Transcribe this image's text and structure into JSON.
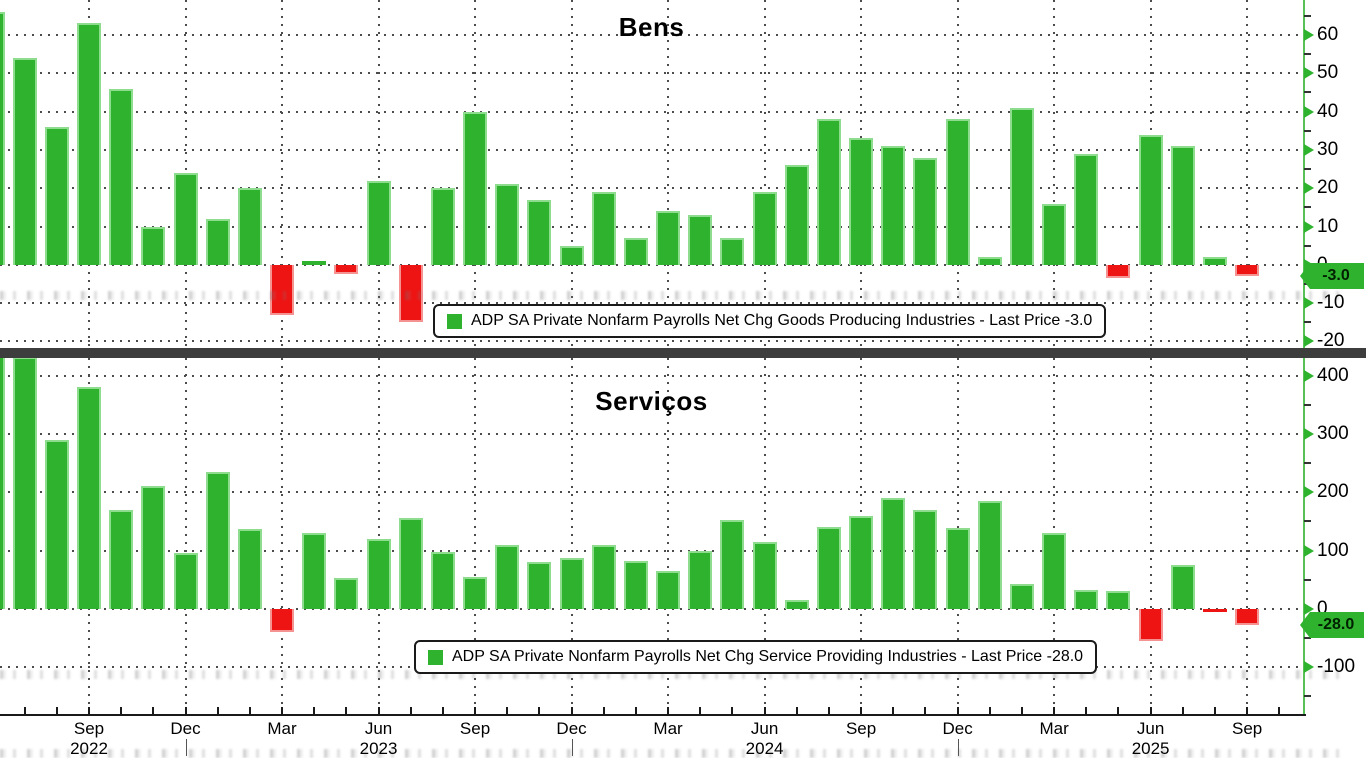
{
  "colors": {
    "bar_green": "#2fb32f",
    "bar_green_edge": "#8edc8e",
    "bar_red": "#ee1414",
    "bar_red_edge": "#f59292",
    "axis_line_green": "#57c057",
    "x_axis_black": "#1a1a1a",
    "grid_gray": "#4c4c4c",
    "divider_gray": "#3d3d3d",
    "badge_text": "#002000",
    "background": "#ffffff"
  },
  "x_axis": {
    "months": [
      "2022-06",
      "2022-07",
      "2022-08",
      "2022-09",
      "2022-10",
      "2022-11",
      "2022-12",
      "2023-01",
      "2023-02",
      "2023-03",
      "2023-04",
      "2023-05",
      "2023-06",
      "2023-07",
      "2023-08",
      "2023-09",
      "2023-10",
      "2023-11",
      "2023-12",
      "2024-01",
      "2024-02",
      "2024-03",
      "2024-04",
      "2024-05",
      "2024-06",
      "2024-07",
      "2024-08",
      "2024-09",
      "2024-10",
      "2024-11",
      "2024-12",
      "2025-01",
      "2025-02",
      "2025-03",
      "2025-04",
      "2025-05",
      "2025-06",
      "2025-07",
      "2025-08",
      "2025-09"
    ],
    "quarter_gridline_mi": [
      3,
      6,
      9,
      12,
      15,
      18,
      21,
      24,
      27,
      30,
      33,
      36,
      39
    ],
    "labels": [
      {
        "text": "Sep",
        "mi": 3
      },
      {
        "text": "Dec",
        "mi": 6
      },
      {
        "text": "Mar",
        "mi": 9
      },
      {
        "text": "Jun",
        "mi": 12
      },
      {
        "text": "Sep",
        "mi": 15
      },
      {
        "text": "Dec",
        "mi": 18
      },
      {
        "text": "Mar",
        "mi": 21
      },
      {
        "text": "Jun",
        "mi": 24
      },
      {
        "text": "Sep",
        "mi": 27
      },
      {
        "text": "Dec",
        "mi": 30
      },
      {
        "text": "Mar",
        "mi": 33
      },
      {
        "text": "Jun",
        "mi": 36
      },
      {
        "text": "Sep",
        "mi": 39
      }
    ],
    "years": [
      {
        "text": "2022",
        "mi": 3
      },
      {
        "text": "2023",
        "mi": 12
      },
      {
        "text": "2024",
        "mi": 24
      },
      {
        "text": "2025",
        "mi": 36
      }
    ],
    "year_separators_mi": [
      6,
      18,
      30
    ]
  },
  "chart_data": [
    {
      "type": "bar",
      "title": "Bens",
      "legend_label": "ADP SA Private Nonfarm Payrolls Net Chg Goods Producing Industries - Last Price -3.0",
      "last_price": -3.0,
      "last_price_badge": "-3.0",
      "ylabel": "",
      "xlabel": "",
      "y_ticks": [
        60,
        50,
        40,
        30,
        20,
        10,
        0,
        -10,
        -20
      ],
      "y_minor_step": 5,
      "ylim": [
        -21.7,
        69.1
      ],
      "grid": true,
      "legend_position": "bottom-center",
      "categories": [
        "2022-06",
        "2022-07",
        "2022-08",
        "2022-09",
        "2022-10",
        "2022-11",
        "2022-12",
        "2023-01",
        "2023-02",
        "2023-03",
        "2023-04",
        "2023-05",
        "2023-06",
        "2023-07",
        "2023-08",
        "2023-09",
        "2023-10",
        "2023-11",
        "2023-12",
        "2024-01",
        "2024-02",
        "2024-03",
        "2024-04",
        "2024-05",
        "2024-06",
        "2024-07",
        "2024-08",
        "2024-09",
        "2024-10",
        "2024-11",
        "2024-12",
        "2025-01",
        "2025-02",
        "2025-03",
        "2025-04",
        "2025-05",
        "2025-06",
        "2025-07",
        "2025-08",
        "2025-09"
      ],
      "values": [
        66,
        54,
        36,
        63,
        46,
        10,
        24,
        12,
        20,
        -13,
        1,
        -2.5,
        22,
        -15,
        20,
        40,
        21,
        17,
        5,
        19,
        7,
        14,
        13,
        7,
        19,
        26,
        38,
        33,
        31,
        28,
        38,
        2,
        41,
        16,
        29,
        -3.5,
        34,
        31,
        2,
        -3
      ]
    },
    {
      "type": "bar",
      "title": "Serviços",
      "legend_label": "ADP SA Private Nonfarm Payrolls Net Chg Service Providing Industries - Last Price -28.0",
      "last_price": -28.0,
      "last_price_badge": "-28.0",
      "ylabel": "",
      "xlabel": "",
      "y_ticks": [
        400,
        300,
        200,
        100,
        0,
        -100
      ],
      "y_minor_step": 50,
      "ylim": [
        -182,
        430
      ],
      "grid": true,
      "legend_position": "bottom-center",
      "categories": [
        "2022-06",
        "2022-07",
        "2022-08",
        "2022-09",
        "2022-10",
        "2022-11",
        "2022-12",
        "2023-01",
        "2023-02",
        "2023-03",
        "2023-04",
        "2023-05",
        "2023-06",
        "2023-07",
        "2023-08",
        "2023-09",
        "2023-10",
        "2023-11",
        "2023-12",
        "2024-01",
        "2024-02",
        "2024-03",
        "2024-04",
        "2024-05",
        "2024-06",
        "2024-07",
        "2024-08",
        "2024-09",
        "2024-10",
        "2024-11",
        "2024-12",
        "2025-01",
        "2025-02",
        "2025-03",
        "2025-04",
        "2025-05",
        "2025-06",
        "2025-07",
        "2025-08",
        "2025-09"
      ],
      "values": [
        445,
        432,
        290,
        380,
        170,
        210,
        95,
        235,
        137,
        -40,
        130,
        53,
        120,
        155,
        98,
        55,
        110,
        80,
        87,
        110,
        82,
        65,
        100,
        153,
        115,
        15,
        140,
        160,
        190,
        170,
        138,
        185,
        42,
        130,
        32,
        30,
        -55,
        75,
        -2,
        -28
      ]
    }
  ]
}
